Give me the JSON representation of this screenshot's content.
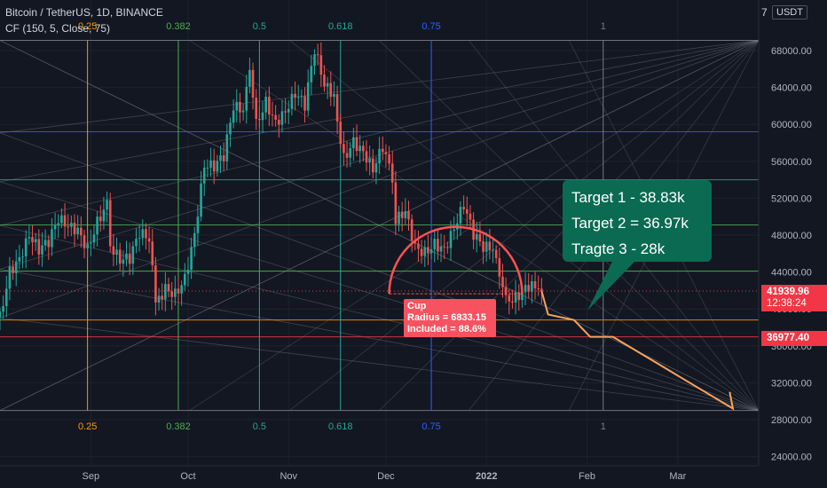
{
  "header": {
    "title": "Bitcoin / TetherUS, 1D, BINANCE",
    "indicator": "CF (150, 5, Close, 75)",
    "currency": "USDT",
    "currency_prefix": "7"
  },
  "price_tags": {
    "last_price": "41939.96",
    "countdown": "12:38:24",
    "target_line": "36977.40"
  },
  "callout": {
    "lines": [
      "Target 1 - 38.83k",
      "Target 2 = 36.97k",
      "Tragte 3 - 28k"
    ]
  },
  "cup_label": {
    "title": "Cup",
    "radius": "Radius = 6833.15",
    "included": "Included = 88.6%"
  },
  "colors": {
    "background": "#131722",
    "up_candle": "#26a69a",
    "down_candle": "#ef5350",
    "cup_arc": "#ff5252",
    "projection": "#f7a35c",
    "callout_bg": "#0b6b52",
    "target_line": "#f23645",
    "fib_orange": "#ff9800",
    "fib_green": "#4caf50",
    "fib_teal": "#26a69a",
    "fib_blue": "#2962ff",
    "fan_lines": "#787b86"
  },
  "chart_data": {
    "type": "candlestick",
    "title": "Bitcoin / TetherUS, 1D, BINANCE",
    "y_axis": {
      "ticks": [
        24000,
        28000,
        32000,
        36000,
        40000,
        44000,
        48000,
        52000,
        56000,
        60000,
        64000,
        68000
      ],
      "tick_labels": [
        "24000.00",
        "28000.00",
        "32000.00",
        "36000.00",
        "40000.00",
        "44000.00",
        "48000.00",
        "52000.00",
        "56000.00",
        "60000.00",
        "64000.00",
        "68000.00"
      ],
      "ylim": [
        22400,
        72200
      ]
    },
    "x_axis": {
      "labels": [
        "Sep",
        "Oct",
        "Nov",
        "Dec",
        "2022",
        "Feb",
        "Mar"
      ],
      "label_dates": [
        "2021-09-01",
        "2021-10-01",
        "2021-11-01",
        "2021-12-01",
        "2022-01-01",
        "2022-02-01",
        "2022-03-01"
      ]
    },
    "fib_time_levels": [
      {
        "label": "0.25",
        "date": "2021-08-31"
      },
      {
        "label": "0.382",
        "date": "2021-09-28"
      },
      {
        "label": "0.5",
        "date": "2021-10-23"
      },
      {
        "label": "0.618",
        "date": "2021-11-17"
      },
      {
        "label": "0.75",
        "date": "2021-12-15"
      },
      {
        "label": "1",
        "date": "2022-02-06"
      }
    ],
    "horizontal_levels": [
      69100,
      59200,
      54000,
      49100,
      44100,
      38800,
      36977.4,
      29000
    ],
    "last_price": 41939.96,
    "cup": {
      "radius": 6833.15,
      "included_pct": 88.6
    },
    "targets": [
      38830,
      36970,
      28000
    ],
    "closes": [
      {
        "date": "2021-08-04",
        "close": 39700
      },
      {
        "date": "2021-08-07",
        "close": 44600
      },
      {
        "date": "2021-08-10",
        "close": 45600
      },
      {
        "date": "2021-08-13",
        "close": 47800
      },
      {
        "date": "2021-08-16",
        "close": 45900
      },
      {
        "date": "2021-08-19",
        "close": 46700
      },
      {
        "date": "2021-08-22",
        "close": 49300
      },
      {
        "date": "2021-08-25",
        "close": 48900
      },
      {
        "date": "2021-08-28",
        "close": 48800
      },
      {
        "date": "2021-08-31",
        "close": 47100
      },
      {
        "date": "2021-09-03",
        "close": 50000
      },
      {
        "date": "2021-09-06",
        "close": 51800
      },
      {
        "date": "2021-09-07",
        "close": 46800
      },
      {
        "date": "2021-09-10",
        "close": 44900
      },
      {
        "date": "2021-09-13",
        "close": 44900
      },
      {
        "date": "2021-09-16",
        "close": 47700
      },
      {
        "date": "2021-09-19",
        "close": 47300
      },
      {
        "date": "2021-09-21",
        "close": 40700
      },
      {
        "date": "2021-09-24",
        "close": 42700
      },
      {
        "date": "2021-09-27",
        "close": 42200
      },
      {
        "date": "2021-09-30",
        "close": 43800
      },
      {
        "date": "2021-10-03",
        "close": 48200
      },
      {
        "date": "2021-10-06",
        "close": 55300
      },
      {
        "date": "2021-10-09",
        "close": 54900
      },
      {
        "date": "2021-10-12",
        "close": 56000
      },
      {
        "date": "2021-10-15",
        "close": 61500
      },
      {
        "date": "2021-10-18",
        "close": 61500
      },
      {
        "date": "2021-10-20",
        "close": 65900
      },
      {
        "date": "2021-10-22",
        "close": 60600
      },
      {
        "date": "2021-10-25",
        "close": 63000
      },
      {
        "date": "2021-10-28",
        "close": 60500
      },
      {
        "date": "2021-10-31",
        "close": 61300
      },
      {
        "date": "2021-11-03",
        "close": 62900
      },
      {
        "date": "2021-11-06",
        "close": 61500
      },
      {
        "date": "2021-11-09",
        "close": 67600
      },
      {
        "date": "2021-11-12",
        "close": 64100
      },
      {
        "date": "2021-11-15",
        "close": 63300
      },
      {
        "date": "2021-11-16",
        "close": 60300
      },
      {
        "date": "2021-11-18",
        "close": 56900
      },
      {
        "date": "2021-11-21",
        "close": 58600
      },
      {
        "date": "2021-11-24",
        "close": 57100
      },
      {
        "date": "2021-11-27",
        "close": 54800
      },
      {
        "date": "2021-11-30",
        "close": 57000
      },
      {
        "date": "2021-12-03",
        "close": 53700
      },
      {
        "date": "2021-12-04",
        "close": 49200
      },
      {
        "date": "2021-12-07",
        "close": 50600
      },
      {
        "date": "2021-12-10",
        "close": 47100
      },
      {
        "date": "2021-12-13",
        "close": 46700
      },
      {
        "date": "2021-12-16",
        "close": 47600
      },
      {
        "date": "2021-12-19",
        "close": 46700
      },
      {
        "date": "2021-12-22",
        "close": 48600
      },
      {
        "date": "2021-12-25",
        "close": 50800
      },
      {
        "date": "2021-12-28",
        "close": 47500
      },
      {
        "date": "2021-12-31",
        "close": 46200
      },
      {
        "date": "2022-01-03",
        "close": 46400
      },
      {
        "date": "2022-01-05",
        "close": 43500
      },
      {
        "date": "2022-01-07",
        "close": 41500
      },
      {
        "date": "2022-01-10",
        "close": 41800
      },
      {
        "date": "2022-01-13",
        "close": 42600
      },
      {
        "date": "2022-01-15",
        "close": 43000
      },
      {
        "date": "2022-01-17",
        "close": 42200
      },
      {
        "date": "2022-01-18",
        "close": 41940
      }
    ],
    "projection_path": [
      {
        "date": "2022-01-18",
        "price": 41940
      },
      {
        "date": "2022-01-20",
        "price": 39400
      },
      {
        "date": "2022-01-28",
        "price": 38800
      },
      {
        "date": "2022-02-02",
        "price": 36977
      },
      {
        "date": "2022-02-09",
        "price": 36977
      },
      {
        "date": "2022-03-18",
        "price": 29200
      },
      {
        "date": "2022-03-17",
        "price": 31000
      }
    ]
  }
}
